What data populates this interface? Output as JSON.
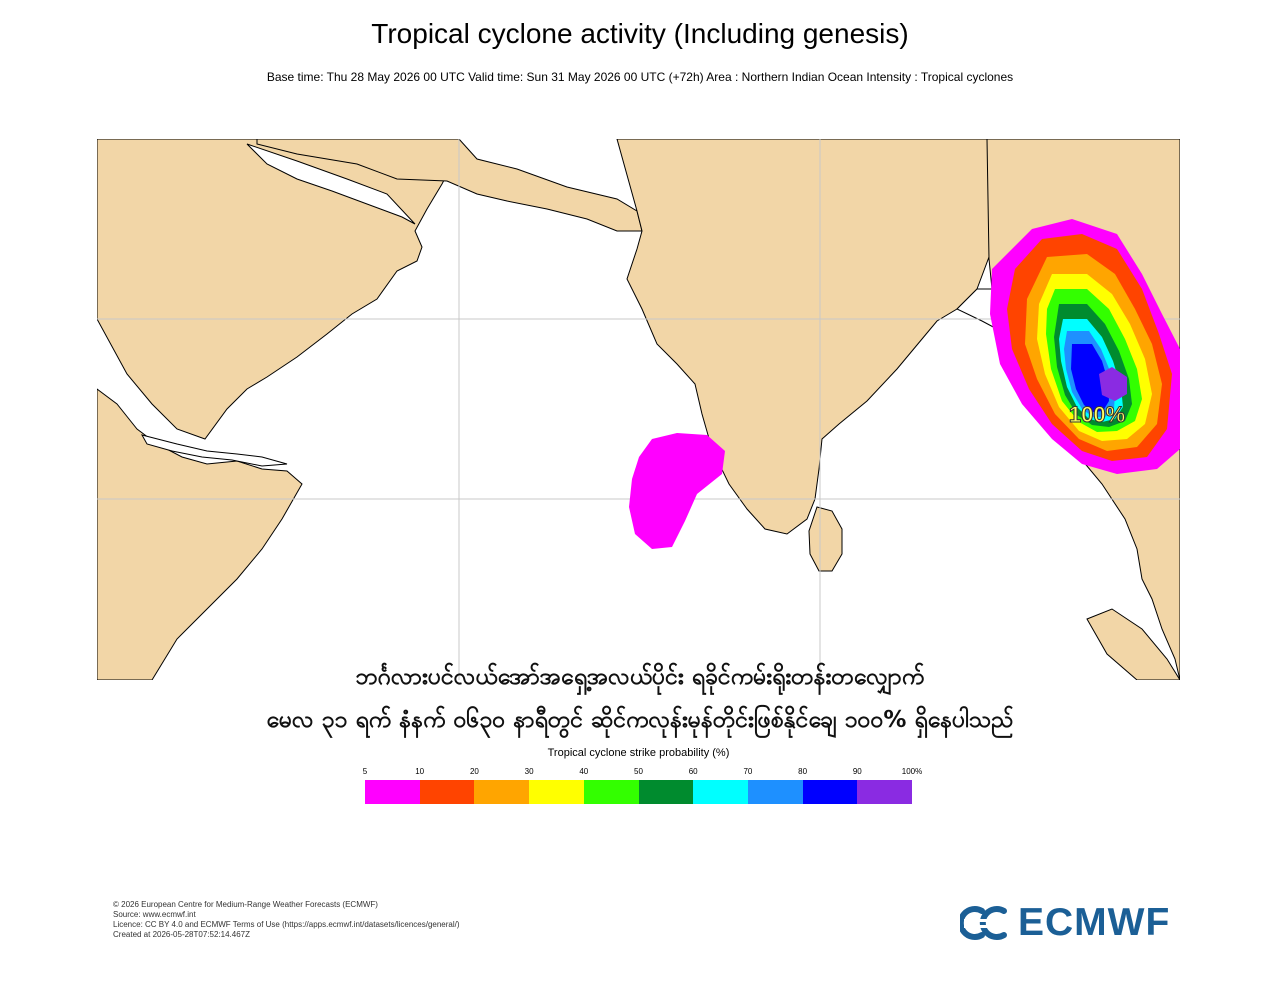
{
  "header": {
    "title": "Tropical cyclone activity (Including genesis)",
    "subtitle": "Base time: Thu 28 May 2026 00 UTC Valid time: Sun 31 May 2026 00 UTC (+72h) Area : Northern Indian Ocean Intensity : Tropical cyclones"
  },
  "map": {
    "land_color": "#f2d6a7",
    "sea_color": "#ffffff",
    "grid_color": "#c8c8c8",
    "max_probability_label": "100%",
    "max_probability_percent": 100
  },
  "caption": {
    "line1": "ဘင်္ဂလားပင်လယ်အော်အရှေ့အလယ်ပိုင်း ရခိုင်ကမ်းရိုးတန်းတလျှောက်",
    "line2": "မေလ ၃၁ ရက် နံနက် ၀၆၃၀ နာရီတွင် ဆိုင်ကလုန်းမုန်တိုင်းဖြစ်နိုင်ချေ ၁၀၀% ရှိနေပါသည်"
  },
  "legend": {
    "title": "Tropical cyclone strike probability (%)",
    "ticks": [
      "5",
      "10",
      "20",
      "30",
      "40",
      "50",
      "60",
      "70",
      "80",
      "90",
      "100%"
    ],
    "colors": [
      "#ff00ff",
      "#ff4400",
      "#ffa500",
      "#ffff00",
      "#33ff00",
      "#008b2e",
      "#00ffff",
      "#1e90ff",
      "#0000ff",
      "#8a2be2"
    ]
  },
  "footer": {
    "copyright": "© 2026 European Centre for Medium-Range Weather Forecasts (ECMWF)",
    "source": "Source: www.ecmwf.int",
    "licence": "Licence: CC BY 4.0 and ECMWF Terms of Use (https://apps.ecmwf.int/datasets/licences/general/)",
    "created": "Created at 2026-05-28T07:52:14.467Z"
  },
  "logo": {
    "text": "ECMWF",
    "color": "#1b5f96"
  }
}
